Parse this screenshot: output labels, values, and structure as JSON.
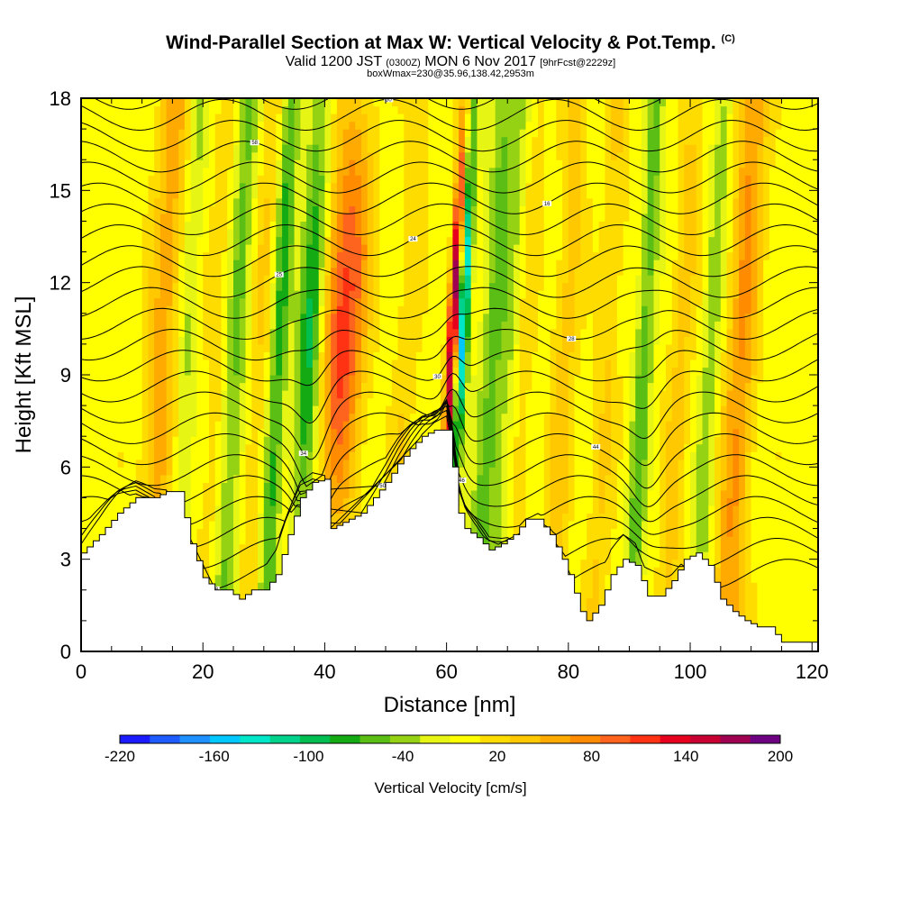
{
  "title": {
    "main": "Wind-Parallel Section at Max W: Vertical Velocity & Pot.Temp.",
    "copyright": "(C)",
    "valid_prefix": "Valid 1200 JST",
    "valid_utc": "(0300Z)",
    "valid_date": "MON 6 Nov 2017",
    "forecast": "[9hrFcst@2229z]",
    "boxline": "boxWmax=230@35.96,138.42,2953m"
  },
  "chart_data": {
    "type": "heatmap",
    "xlabel": "Distance [nm]",
    "ylabel": "Height [Kft MSL]",
    "xlim": [
      0,
      121
    ],
    "ylim": [
      0,
      18
    ],
    "x_ticks": [
      0,
      20,
      40,
      60,
      80,
      100,
      120
    ],
    "y_ticks": [
      0,
      3,
      6,
      9,
      12,
      15,
      18
    ],
    "colorbar": {
      "title": "Vertical Velocity [cm/s]",
      "min": -220,
      "max": 200,
      "step": 20,
      "tick_labels": [
        "-220",
        "-160",
        "-100",
        "-40",
        "20",
        "80",
        "140",
        "200"
      ],
      "colors": [
        "#1b1bff",
        "#1e5cff",
        "#1e90ff",
        "#00c8ff",
        "#00e6c8",
        "#00d28c",
        "#00be50",
        "#14aa14",
        "#5abe14",
        "#96d214",
        "#e6f514",
        "#ffff00",
        "#ffdc00",
        "#ffc800",
        "#ffaa00",
        "#ff8c00",
        "#ff641e",
        "#ff3214",
        "#e6001e",
        "#c80032",
        "#a00050",
        "#6e0082"
      ]
    },
    "background_w": 10,
    "updraft_bands": [
      {
        "x": 13,
        "w": 2.5,
        "amp": 60
      },
      {
        "x": 22,
        "w": 2,
        "amp": 25
      },
      {
        "x": 29,
        "w": 2,
        "amp": 30
      },
      {
        "x": 42.5,
        "w": 3.5,
        "amp": 125
      },
      {
        "x": 53,
        "w": 2,
        "amp": 25
      },
      {
        "x": 60.5,
        "w": 0.9,
        "amp": 210
      },
      {
        "x": 72,
        "w": 2,
        "amp": 25
      },
      {
        "x": 79,
        "w": 2,
        "amp": 40
      },
      {
        "x": 86,
        "w": 2,
        "amp": 30
      },
      {
        "x": 98,
        "w": 2,
        "amp": 35
      },
      {
        "x": 108,
        "w": 2.5,
        "amp": 70
      }
    ],
    "downdraft_bands": [
      {
        "x": 17,
        "w": 1.5,
        "amp": -35
      },
      {
        "x": 25,
        "w": 2,
        "amp": -55
      },
      {
        "x": 32,
        "w": 1.5,
        "amp": -75
      },
      {
        "x": 37,
        "w": 2,
        "amp": -110
      },
      {
        "x": 62,
        "w": 1,
        "amp": -170
      },
      {
        "x": 67,
        "w": 2,
        "amp": -50
      },
      {
        "x": 70,
        "w": 2,
        "amp": -35
      },
      {
        "x": 92,
        "w": 1.5,
        "amp": -60
      },
      {
        "x": 103,
        "w": 1.5,
        "amp": -40
      }
    ],
    "terrain": [
      [
        0,
        3.2
      ],
      [
        3,
        3.8
      ],
      [
        6,
        4.5
      ],
      [
        9,
        5.0
      ],
      [
        12,
        5.0
      ],
      [
        14,
        5.2
      ],
      [
        16,
        5.2
      ],
      [
        18,
        3.5
      ],
      [
        20,
        2.4
      ],
      [
        22,
        2.0
      ],
      [
        24,
        2.0
      ],
      [
        26,
        1.7
      ],
      [
        28,
        2.0
      ],
      [
        30,
        2.0
      ],
      [
        32,
        2.5
      ],
      [
        34,
        3.8
      ],
      [
        36,
        5.0
      ],
      [
        38,
        5.5
      ],
      [
        40,
        5.6
      ],
      [
        41,
        4.0
      ],
      [
        43,
        4.2
      ],
      [
        46,
        4.5
      ],
      [
        48,
        5.0
      ],
      [
        50,
        5.5
      ],
      [
        52,
        6.1
      ],
      [
        54,
        6.6
      ],
      [
        56,
        7.0
      ],
      [
        58,
        7.2
      ],
      [
        60,
        7.2
      ],
      [
        61,
        6.0
      ],
      [
        62,
        4.5
      ],
      [
        63,
        4.0
      ],
      [
        65,
        3.7
      ],
      [
        67,
        3.3
      ],
      [
        69,
        3.5
      ],
      [
        71,
        3.8
      ],
      [
        73,
        4.3
      ],
      [
        75,
        4.3
      ],
      [
        77,
        3.8
      ],
      [
        79,
        3.0
      ],
      [
        80,
        2.5
      ],
      [
        82,
        1.3
      ],
      [
        83,
        1.0
      ],
      [
        85,
        1.5
      ],
      [
        87,
        2.5
      ],
      [
        89,
        3.0
      ],
      [
        91,
        2.8
      ],
      [
        93,
        1.8
      ],
      [
        95,
        1.8
      ],
      [
        97,
        2.3
      ],
      [
        99,
        3.0
      ],
      [
        101,
        3.2
      ],
      [
        103,
        2.8
      ],
      [
        105,
        1.7
      ],
      [
        107,
        1.3
      ],
      [
        109,
        1.0
      ],
      [
        111,
        0.8
      ],
      [
        113,
        0.8
      ],
      [
        115,
        0.3
      ],
      [
        118,
        0.3
      ],
      [
        121,
        0.3
      ]
    ],
    "isentrope_labels": [
      "58",
      "50",
      "46",
      "44",
      "34",
      "30",
      "28",
      "25",
      "24",
      "16"
    ]
  }
}
